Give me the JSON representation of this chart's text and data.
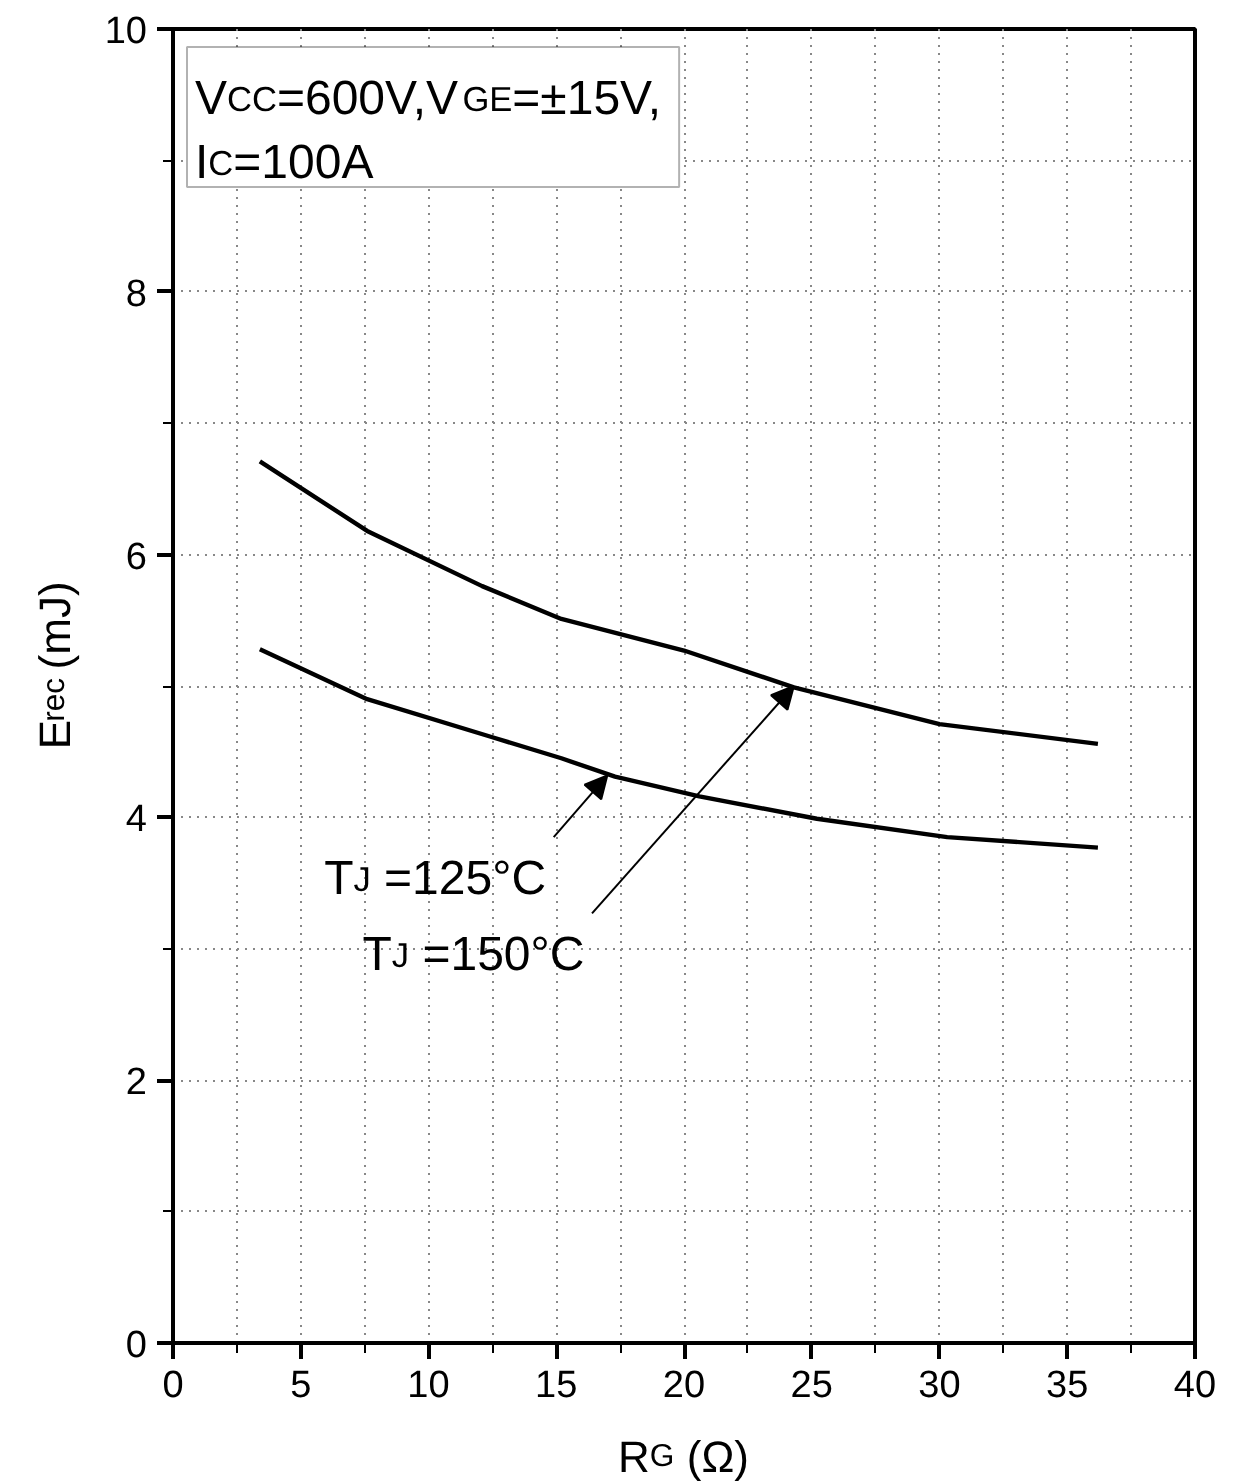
{
  "chart_data": {
    "type": "line",
    "xlabel": "R$_{G}$ (Ω)",
    "ylabel": "E$_{rec}$ (mJ)",
    "annotations": [
      "V$_{CC}$=600V,V$_{GE}$=±15V,\nI$_{C}$=100A",
      {
        "text": "T$_{J}$ =125°C",
        "x": 17.0,
        "y": 4.32
      },
      {
        "text": "T$_{J}$ =150°C",
        "x": 24.3,
        "y": 5.0
      }
    ],
    "series": [
      {
        "color": "#000000",
        "x": [
          3.4,
          7.6,
          12.1,
          15.2,
          20.0,
          24.3,
          30.0,
          36.2
        ],
        "values": [
          6.71,
          6.18,
          5.76,
          5.51,
          5.27,
          4.99,
          4.71,
          4.56
        ]
      },
      {
        "color": "#000000",
        "x": [
          3.4,
          7.6,
          12.5,
          15.2,
          17.3,
          20.6,
          25.2,
          30.3,
          36.2
        ],
        "values": [
          5.28,
          4.9,
          4.61,
          4.45,
          4.31,
          4.16,
          3.99,
          3.85,
          3.77
        ]
      }
    ],
    "xlim": [
      0,
      40
    ],
    "ylim": [
      0,
      10
    ],
    "xticks": [
      0,
      5,
      10,
      15,
      20,
      25,
      30,
      35,
      40
    ],
    "yticks": [
      0,
      2,
      4,
      6,
      8,
      10
    ],
    "grid": true,
    "marker": "none",
    "line_style": "solid"
  }
}
